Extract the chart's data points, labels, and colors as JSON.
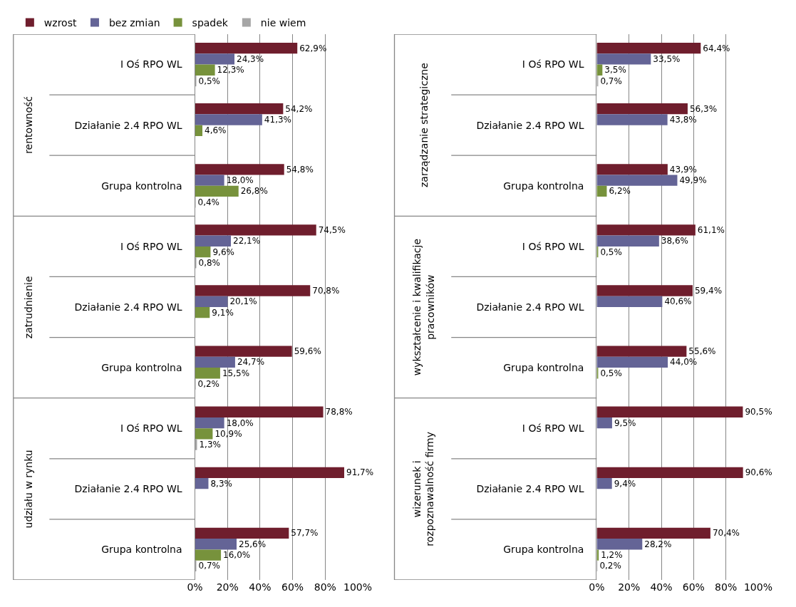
{
  "chart_data": [
    {
      "type": "bar",
      "orientation": "horizontal",
      "legend": "top",
      "grid": "x",
      "categories": [
        "I Oś RPO WL",
        "Działanie 2.4 RPO WL",
        "Grupa kontrolna",
        "I Oś RPO WL",
        "Działanie 2.4 RPO WL",
        "Grupa kontrolna",
        "I Oś RPO WL",
        "Działanie 2.4 RPO WL",
        "Grupa kontrolna"
      ],
      "annotations": [
        "rentowność",
        "zatrudnienie",
        "udziału w rynku"
      ],
      "xlim": [
        0,
        100
      ],
      "xticks": [
        {
          "value": 0,
          "label": "0%"
        },
        {
          "value": 20,
          "label": "20%"
        },
        {
          "value": 40,
          "label": "40%"
        },
        {
          "value": 60,
          "label": "60%"
        },
        {
          "value": 80,
          "label": "80%"
        },
        {
          "value": 100,
          "label": "100%"
        }
      ],
      "series": [
        {
          "name": "wzrost",
          "color": "#6f1e2d",
          "values": [
            62.9,
            54.2,
            54.8,
            74.5,
            70.8,
            59.6,
            78.8,
            91.7,
            57.7
          ],
          "value_labels": [
            "62,9%",
            "54,2%",
            "54,8%",
            "74,5%",
            "70,8%",
            "59,6%",
            "78,8%",
            "91,7%",
            "57,7%"
          ]
        },
        {
          "name": "bez zmian",
          "color": "#646496",
          "values": [
            24.3,
            41.3,
            18.0,
            22.1,
            20.1,
            24.7,
            18.0,
            8.3,
            25.6
          ],
          "value_labels": [
            "24,3%",
            "41,3%",
            "18,0%",
            "22,1%",
            "20,1%",
            "24,7%",
            "18,0%",
            "8,3%",
            "25,6%"
          ]
        },
        {
          "name": "spadek",
          "color": "#77923c",
          "values": [
            12.3,
            4.6,
            26.8,
            9.6,
            9.1,
            15.5,
            10.9,
            null,
            16.0
          ],
          "value_labels": [
            "12,3%",
            "4,6%",
            "26,8%",
            "9,6%",
            "9,1%",
            "15,5%",
            "10,9%",
            null,
            "16,0%"
          ]
        },
        {
          "name": "nie wiem",
          "color": "#a6a6a6",
          "values": [
            0.5,
            null,
            0.4,
            0.8,
            null,
            0.2,
            1.3,
            null,
            0.7
          ],
          "value_labels": [
            "0,5%",
            null,
            "0,4%",
            "0,8%",
            null,
            "0,2%",
            "1,3%",
            null,
            "0,7%"
          ]
        }
      ]
    },
    {
      "type": "bar",
      "orientation": "horizontal",
      "grid": "x",
      "categories": [
        "I Oś RPO WL",
        "Działanie 2.4 RPO WL",
        "Grupa kontrolna",
        "I Oś RPO WL",
        "Działanie 2.4 RPO WL",
        "Grupa kontrolna",
        "I Oś RPO WL",
        "Działanie 2.4 RPO WL",
        "Grupa kontrolna"
      ],
      "annotations": [
        "zarządzanie strategiczne",
        "wykształcenie i kwalifikacje\npracowników",
        "wizerunek i\nrozpoznawalność firmy"
      ],
      "xlim": [
        0,
        100
      ],
      "xticks": [
        {
          "value": 0,
          "label": "0%"
        },
        {
          "value": 20,
          "label": "20%"
        },
        {
          "value": 40,
          "label": "40%"
        },
        {
          "value": 60,
          "label": "60%"
        },
        {
          "value": 80,
          "label": "80%"
        },
        {
          "value": 100,
          "label": "100%"
        }
      ],
      "series": [
        {
          "name": "wzrost",
          "color": "#6f1e2d",
          "values": [
            64.4,
            56.3,
            43.9,
            61.1,
            59.4,
            55.6,
            90.5,
            90.6,
            70.4
          ],
          "value_labels": [
            "64,4%",
            "56,3%",
            "43,9%",
            "61,1%",
            "59,4%",
            "55,6%",
            "90,5%",
            "90,6%",
            "70,4%"
          ]
        },
        {
          "name": "bez zmian",
          "color": "#646496",
          "values": [
            33.5,
            43.8,
            49.9,
            38.6,
            40.6,
            44.0,
            9.5,
            9.4,
            28.2
          ],
          "value_labels": [
            "33,5%",
            "43,8%",
            "49,9%",
            "38,6%",
            "40,6%",
            "44,0%",
            "9,5%",
            "9,4%",
            "28,2%"
          ]
        },
        {
          "name": "spadek",
          "color": "#77923c",
          "values": [
            3.5,
            null,
            6.2,
            0.5,
            null,
            0.5,
            null,
            null,
            1.2
          ],
          "value_labels": [
            "3,5%",
            null,
            "6,2%",
            "0,5%",
            null,
            "0,5%",
            null,
            null,
            "1,2%"
          ]
        },
        {
          "name": "nie wiem",
          "color": "#a6a6a6",
          "values": [
            0.7,
            null,
            null,
            null,
            null,
            null,
            null,
            null,
            0.2
          ],
          "value_labels": [
            "0,7%",
            null,
            null,
            null,
            null,
            null,
            null,
            null,
            "0,2%"
          ]
        }
      ]
    }
  ]
}
